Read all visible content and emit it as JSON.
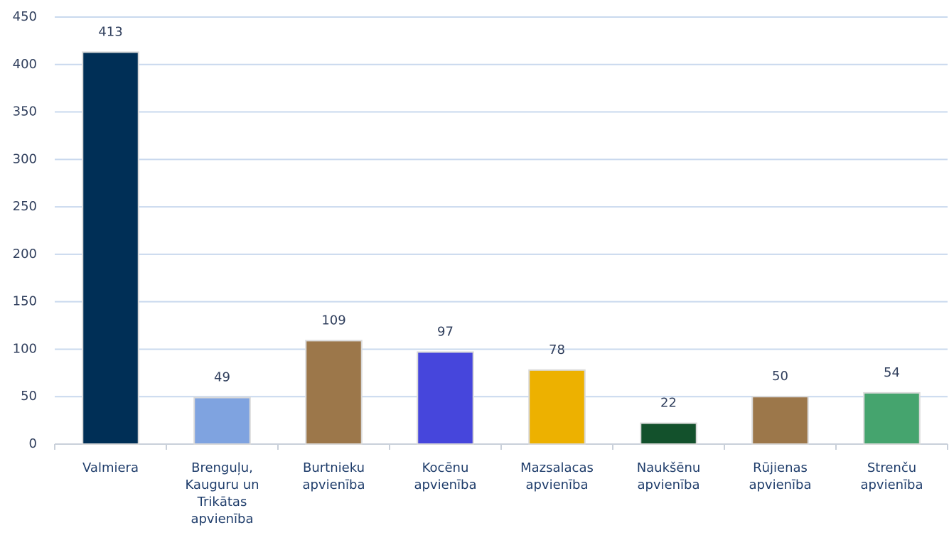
{
  "chart_data": {
    "type": "bar",
    "categories": [
      "Valmiera",
      "Brenguļu, Kauguru un Trikātas apvienība",
      "Burtnieku apvienība",
      "Kocēnu apvienība",
      "Mazsalacas apvienība",
      "Naukšēnu apvienība",
      "Rūjienas apvienība",
      "Strenču apvienība"
    ],
    "values": [
      413,
      49,
      109,
      97,
      78,
      22,
      50,
      54
    ],
    "colors": [
      "#002f56",
      "#7fa3e0",
      "#9c774a",
      "#4646dc",
      "#edb100",
      "#13512c",
      "#9c774a",
      "#45a46e"
    ],
    "ylim": [
      0,
      450
    ],
    "yticks": [
      0,
      50,
      100,
      150,
      200,
      250,
      300,
      350,
      400,
      450
    ],
    "grid": true
  }
}
